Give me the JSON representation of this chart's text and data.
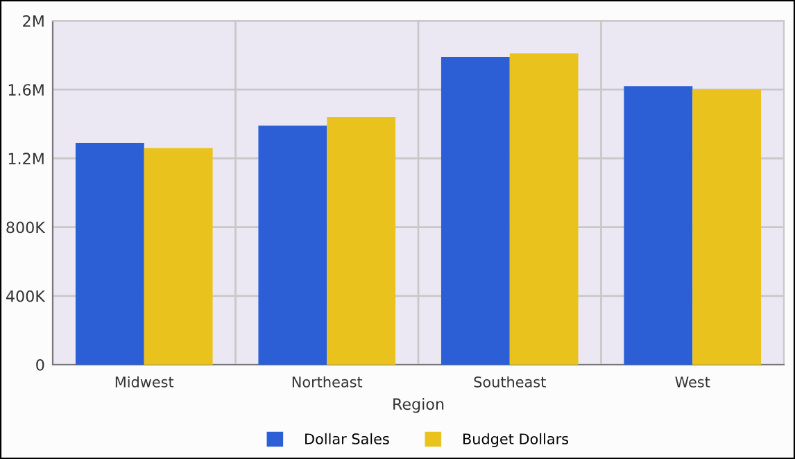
{
  "chart_data": {
    "type": "bar",
    "xlabel": "Region",
    "categories": [
      "Midwest",
      "Northeast",
      "Southeast",
      "West"
    ],
    "series": [
      {
        "name": "Dollar Sales",
        "color": "#2c5fd6",
        "values": [
          1290000,
          1390000,
          1790000,
          1620000
        ]
      },
      {
        "name": "Budget Dollars",
        "color": "#eac21d",
        "values": [
          1260000,
          1440000,
          1810000,
          1600000
        ]
      }
    ],
    "ylim": [
      0,
      2000000
    ],
    "yticks": [
      {
        "value": 0,
        "label": "0"
      },
      {
        "value": 400000,
        "label": "400K"
      },
      {
        "value": 800000,
        "label": "800K"
      },
      {
        "value": 1200000,
        "label": "1.2M"
      },
      {
        "value": 1600000,
        "label": "1.6M"
      },
      {
        "value": 2000000,
        "label": "2M"
      }
    ],
    "grid": true,
    "legend": "bottom"
  }
}
